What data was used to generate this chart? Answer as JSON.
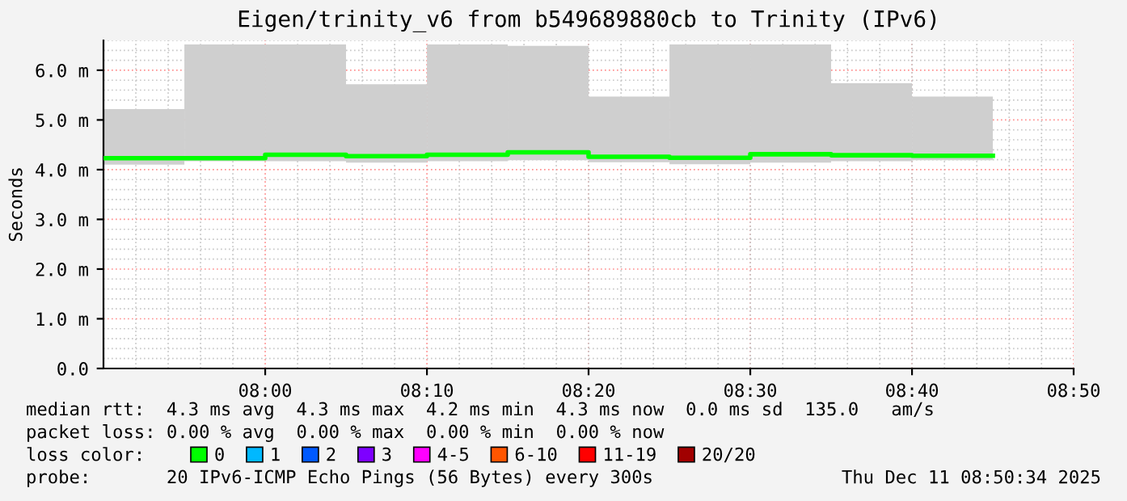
{
  "chart_data": {
    "type": "step",
    "title": "Eigen/trinity_v6 from b549689880cb to Trinity (IPv6)",
    "ylabel": "Seconds",
    "legend_title": "loss color:",
    "x": [
      7.8333,
      7.9167,
      8.0,
      8.0833,
      8.1667,
      8.25,
      8.3333,
      8.4167,
      8.5,
      8.5833,
      8.6667,
      8.75
    ],
    "series": [
      {
        "name": "0",
        "color": "#00ff00",
        "values": [
          4.23,
          4.23,
          4.3,
          4.27,
          4.3,
          4.35,
          4.26,
          4.24,
          4.31,
          4.29,
          4.28,
          4.28
        ],
        "lower": [
          4.1,
          4.17,
          4.17,
          4.14,
          4.17,
          4.19,
          4.15,
          4.11,
          4.14,
          4.17,
          4.19,
          4.19
        ],
        "upper": [
          5.22,
          6.52,
          6.52,
          5.72,
          6.52,
          6.49,
          5.47,
          6.52,
          6.52,
          5.74,
          5.47,
          5.47
        ]
      },
      {
        "name": "1",
        "color": "#00b8ff",
        "values": [
          null,
          null,
          null,
          null,
          null,
          null,
          null,
          null,
          null,
          null,
          null,
          null
        ]
      },
      {
        "name": "2",
        "color": "#0059ff",
        "values": [
          null,
          null,
          null,
          null,
          null,
          null,
          null,
          null,
          null,
          null,
          null,
          null
        ]
      },
      {
        "name": "3",
        "color": "#7e00ff",
        "values": [
          null,
          null,
          null,
          null,
          null,
          null,
          null,
          null,
          null,
          null,
          null,
          null
        ]
      },
      {
        "name": "4-5",
        "color": "#ff00ff",
        "values": [
          null,
          null,
          null,
          null,
          null,
          null,
          null,
          null,
          null,
          null,
          null,
          null
        ]
      },
      {
        "name": "6-10",
        "color": "#ff5500",
        "values": [
          null,
          null,
          null,
          null,
          null,
          null,
          null,
          null,
          null,
          null,
          null,
          null
        ]
      },
      {
        "name": "11-19",
        "color": "#ff0000",
        "values": [
          null,
          null,
          null,
          null,
          null,
          null,
          null,
          null,
          null,
          null,
          null,
          null
        ]
      },
      {
        "name": "20/20",
        "color": "#a10000",
        "values": [
          null,
          null,
          null,
          null,
          null,
          null,
          null,
          null,
          null,
          null,
          null,
          null
        ]
      }
    ],
    "xlim": [
      7.8333,
      8.8333
    ],
    "xticks": [
      {
        "value": 8.0,
        "label": "08:00"
      },
      {
        "value": 8.1667,
        "label": "08:10"
      },
      {
        "value": 8.3333,
        "label": "08:20"
      },
      {
        "value": 8.5,
        "label": "08:30"
      },
      {
        "value": 8.6667,
        "label": "08:40"
      },
      {
        "value": 8.8333,
        "label": "08:50"
      }
    ],
    "ylim": [
      0,
      6.6
    ],
    "yticks": [
      {
        "value": 0,
        "label": "0.0"
      },
      {
        "value": 1,
        "label": "1.0 m"
      },
      {
        "value": 2,
        "label": "2.0 m"
      },
      {
        "value": 3,
        "label": "3.0 m"
      },
      {
        "value": 4,
        "label": "4.0 m"
      },
      {
        "value": 5,
        "label": "5.0 m"
      },
      {
        "value": 6,
        "label": "6.0 m"
      }
    ],
    "grid": true,
    "legend": "bottom",
    "annotations": [
      "median rtt:  4.3 ms avg  4.3 ms max  4.2 ms min  4.3 ms now  0.0 ms sd  135.0   am/s",
      "packet loss: 0.00 % avg  0.00 % max  0.00 % min  0.00 % now",
      "probe:       20 IPv6-ICMP Echo Pings (56 Bytes) every 300s",
      "Thu Dec 11 08:50:34 2025"
    ]
  }
}
